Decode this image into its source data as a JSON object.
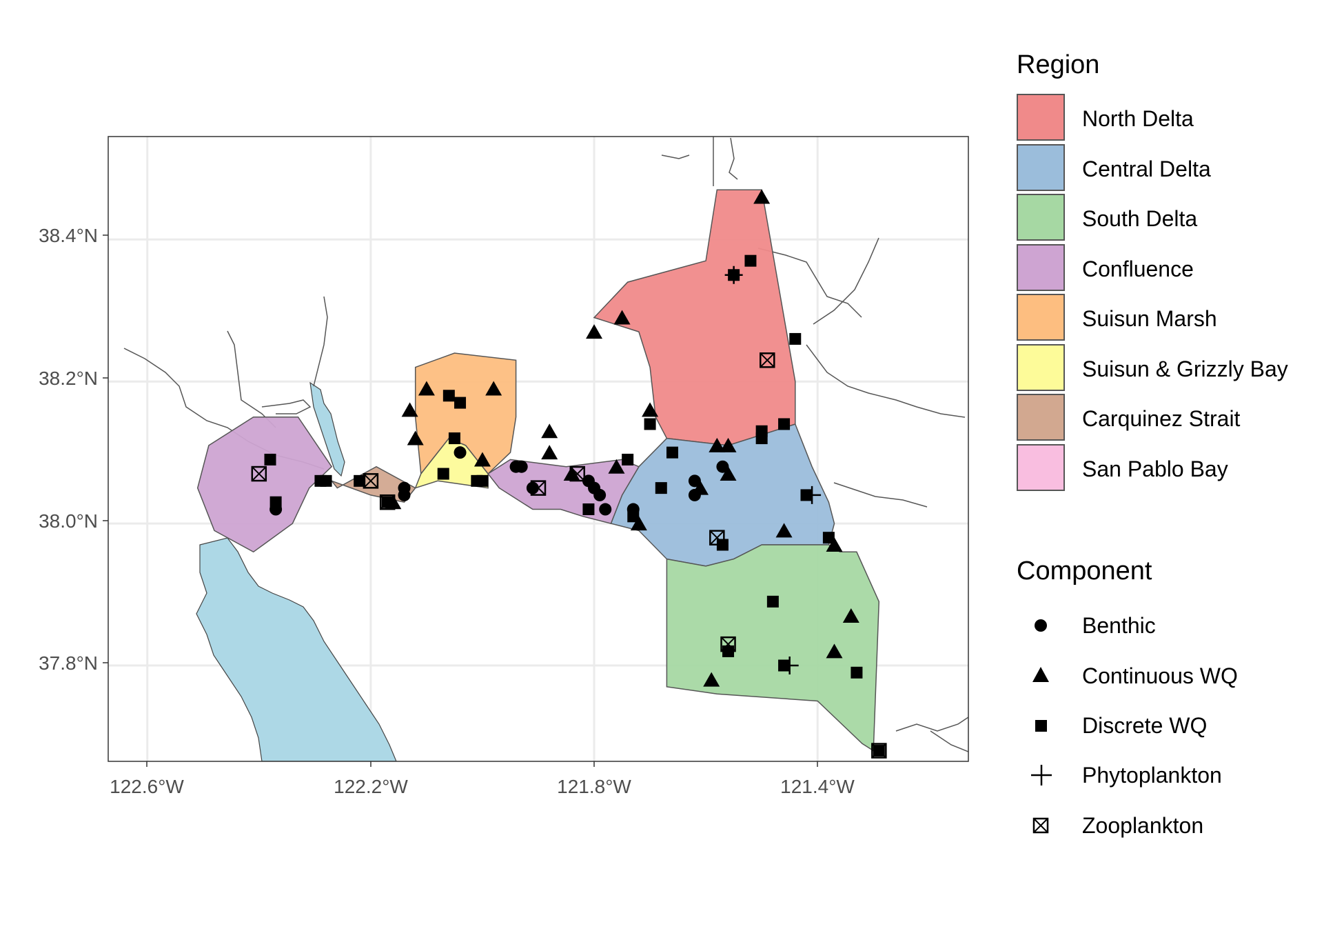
{
  "axes": {
    "x_ticks": [
      {
        "value": -122.6,
        "label": "122.6°W"
      },
      {
        "value": -122.2,
        "label": "122.2°W"
      },
      {
        "value": -121.8,
        "label": "121.8°W"
      },
      {
        "value": -121.4,
        "label": "121.4°W"
      }
    ],
    "y_ticks": [
      {
        "value": 38.4,
        "label": "38.4°N"
      },
      {
        "value": 38.2,
        "label": "38.2°N"
      },
      {
        "value": 38.0,
        "label": "38.0°N"
      },
      {
        "value": 37.8,
        "label": "37.8°N"
      }
    ],
    "xlim": [
      -122.67,
      -121.13
    ],
    "ylim": [
      37.665,
      38.545
    ],
    "grid": true
  },
  "legend": {
    "region": {
      "title": "Region",
      "items": [
        {
          "name": "North Delta",
          "color": "#F08A8A"
        },
        {
          "name": "Central Delta",
          "color": "#9BBDDB"
        },
        {
          "name": "South Delta",
          "color": "#A6D8A3"
        },
        {
          "name": "Confluence",
          "color": "#CEA4D2"
        },
        {
          "name": "Suisun Marsh",
          "color": "#FDBE80"
        },
        {
          "name": "Suisun & Grizzly Bay",
          "color": "#FDFB99"
        },
        {
          "name": "Carquinez Strait",
          "color": "#D2A890"
        },
        {
          "name": "San Pablo Bay",
          "color": "#F9BEE0"
        }
      ]
    },
    "component": {
      "title": "Component",
      "items": [
        {
          "name": "Benthic",
          "shape": "circle"
        },
        {
          "name": "Continuous WQ",
          "shape": "triangle"
        },
        {
          "name": "Discrete WQ",
          "shape": "square"
        },
        {
          "name": "Phytoplankton",
          "shape": "plus"
        },
        {
          "name": "Zooplankton",
          "shape": "boxed-x"
        }
      ]
    }
  },
  "colors": {
    "water": "#ADD8E6",
    "region_border": "#555555",
    "grid": "#EBEBEB"
  },
  "chart_data": {
    "type": "map",
    "regions": [
      {
        "name": "North Delta",
        "coords": [
          [
            -121.72,
            38.27
          ],
          [
            -121.8,
            38.29
          ],
          [
            -121.74,
            38.34
          ],
          [
            -121.6,
            38.37
          ],
          [
            -121.58,
            38.47
          ],
          [
            -121.5,
            38.47
          ],
          [
            -121.44,
            38.2
          ],
          [
            -121.44,
            38.14
          ],
          [
            -121.56,
            38.11
          ],
          [
            -121.67,
            38.12
          ],
          [
            -121.69,
            38.15
          ],
          [
            -121.7,
            38.22
          ]
        ]
      },
      {
        "name": "Central Delta",
        "coords": [
          [
            -121.72,
            38.08
          ],
          [
            -121.67,
            38.12
          ],
          [
            -121.56,
            38.11
          ],
          [
            -121.44,
            38.14
          ],
          [
            -121.41,
            38.08
          ],
          [
            -121.38,
            38.03
          ],
          [
            -121.37,
            38.0
          ],
          [
            -121.38,
            37.97
          ],
          [
            -121.5,
            37.97
          ],
          [
            -121.55,
            37.95
          ],
          [
            -121.6,
            37.94
          ],
          [
            -121.67,
            37.95
          ],
          [
            -121.72,
            37.99
          ],
          [
            -121.77,
            38.0
          ],
          [
            -121.75,
            38.04
          ]
        ]
      },
      {
        "name": "South Delta",
        "coords": [
          [
            -121.67,
            37.95
          ],
          [
            -121.6,
            37.94
          ],
          [
            -121.55,
            37.95
          ],
          [
            -121.5,
            37.97
          ],
          [
            -121.38,
            37.97
          ],
          [
            -121.36,
            37.96
          ],
          [
            -121.33,
            37.96
          ],
          [
            -121.29,
            37.89
          ],
          [
            -121.3,
            37.68
          ],
          [
            -121.32,
            37.69
          ],
          [
            -121.4,
            37.75
          ],
          [
            -121.58,
            37.76
          ],
          [
            -121.67,
            37.77
          ]
        ]
      },
      {
        "name": "Confluence",
        "coords": [
          [
            -121.72,
            38.08
          ],
          [
            -121.75,
            38.04
          ],
          [
            -121.77,
            38.0
          ],
          [
            -121.82,
            38.01
          ],
          [
            -121.86,
            38.02
          ],
          [
            -121.91,
            38.02
          ],
          [
            -121.97,
            38.05
          ],
          [
            -121.99,
            38.07
          ],
          [
            -121.95,
            38.09
          ],
          [
            -121.85,
            38.08
          ],
          [
            -121.75,
            38.09
          ]
        ]
      },
      {
        "name": "Confluence (west)",
        "coords": [
          [
            -122.49,
            38.11
          ],
          [
            -122.41,
            38.15
          ],
          [
            -122.33,
            38.15
          ],
          [
            -122.27,
            38.08
          ],
          [
            -122.31,
            38.05
          ],
          [
            -122.34,
            38.0
          ],
          [
            -122.41,
            37.96
          ],
          [
            -122.48,
            37.99
          ],
          [
            -122.51,
            38.05
          ]
        ]
      },
      {
        "name": "Suisun Marsh",
        "coords": [
          [
            -122.12,
            38.22
          ],
          [
            -122.05,
            38.24
          ],
          [
            -121.94,
            38.23
          ],
          [
            -121.94,
            38.15
          ],
          [
            -121.95,
            38.1
          ],
          [
            -121.99,
            38.07
          ],
          [
            -122.03,
            38.11
          ],
          [
            -122.06,
            38.12
          ],
          [
            -122.09,
            38.09
          ],
          [
            -122.11,
            38.07
          ],
          [
            -122.12,
            38.15
          ]
        ]
      },
      {
        "name": "Suisun & Grizzly Bay",
        "coords": [
          [
            -122.11,
            38.07
          ],
          [
            -122.09,
            38.09
          ],
          [
            -122.06,
            38.12
          ],
          [
            -122.03,
            38.11
          ],
          [
            -121.99,
            38.07
          ],
          [
            -121.99,
            38.05
          ],
          [
            -122.08,
            38.06
          ],
          [
            -122.12,
            38.05
          ]
        ]
      },
      {
        "name": "Carquinez Strait",
        "coords": [
          [
            -122.26,
            38.05
          ],
          [
            -122.19,
            38.08
          ],
          [
            -122.12,
            38.05
          ],
          [
            -122.14,
            38.03
          ],
          [
            -122.2,
            38.04
          ],
          [
            -122.27,
            38.06
          ]
        ]
      }
    ],
    "stations": [
      {
        "lon": -121.5,
        "lat": 38.46,
        "component": "Continuous WQ"
      },
      {
        "lon": -121.52,
        "lat": 38.37,
        "component": "Discrete WQ"
      },
      {
        "lon": -121.55,
        "lat": 38.35,
        "component": "Discrete WQ"
      },
      {
        "lon": -121.55,
        "lat": 38.35,
        "component": "Phytoplankton"
      },
      {
        "lon": -121.75,
        "lat": 38.29,
        "component": "Continuous WQ"
      },
      {
        "lon": -121.8,
        "lat": 38.27,
        "component": "Continuous WQ"
      },
      {
        "lon": -121.44,
        "lat": 38.26,
        "component": "Discrete WQ"
      },
      {
        "lon": -121.49,
        "lat": 38.23,
        "component": "Zooplankton"
      },
      {
        "lon": -122.1,
        "lat": 38.19,
        "component": "Continuous WQ"
      },
      {
        "lon": -121.98,
        "lat": 38.19,
        "component": "Continuous WQ"
      },
      {
        "lon": -122.06,
        "lat": 38.18,
        "component": "Discrete WQ"
      },
      {
        "lon": -122.04,
        "lat": 38.17,
        "component": "Discrete WQ"
      },
      {
        "lon": -122.13,
        "lat": 38.16,
        "component": "Continuous WQ"
      },
      {
        "lon": -121.7,
        "lat": 38.16,
        "component": "Continuous WQ"
      },
      {
        "lon": -121.7,
        "lat": 38.14,
        "component": "Discrete WQ"
      },
      {
        "lon": -121.46,
        "lat": 38.14,
        "component": "Discrete WQ"
      },
      {
        "lon": -121.5,
        "lat": 38.13,
        "component": "Discrete WQ"
      },
      {
        "lon": -121.5,
        "lat": 38.12,
        "component": "Discrete WQ"
      },
      {
        "lon": -121.88,
        "lat": 38.13,
        "component": "Continuous WQ"
      },
      {
        "lon": -122.12,
        "lat": 38.12,
        "component": "Continuous WQ"
      },
      {
        "lon": -122.05,
        "lat": 38.12,
        "component": "Discrete WQ"
      },
      {
        "lon": -122.04,
        "lat": 38.1,
        "component": "Benthic"
      },
      {
        "lon": -121.88,
        "lat": 38.1,
        "component": "Continuous WQ"
      },
      {
        "lon": -121.58,
        "lat": 38.11,
        "component": "Continuous WQ"
      },
      {
        "lon": -121.56,
        "lat": 38.11,
        "component": "Continuous WQ"
      },
      {
        "lon": -121.66,
        "lat": 38.1,
        "component": "Discrete WQ"
      },
      {
        "lon": -121.74,
        "lat": 38.09,
        "component": "Discrete WQ"
      },
      {
        "lon": -121.76,
        "lat": 38.08,
        "component": "Continuous WQ"
      },
      {
        "lon": -122.0,
        "lat": 38.09,
        "component": "Continuous WQ"
      },
      {
        "lon": -121.57,
        "lat": 38.08,
        "component": "Benthic"
      },
      {
        "lon": -121.56,
        "lat": 38.07,
        "component": "Continuous WQ"
      },
      {
        "lon": -121.84,
        "lat": 38.07,
        "component": "Continuous WQ"
      },
      {
        "lon": -121.94,
        "lat": 38.08,
        "component": "Benthic"
      },
      {
        "lon": -121.93,
        "lat": 38.08,
        "component": "Benthic"
      },
      {
        "lon": -122.38,
        "lat": 38.09,
        "component": "Discrete WQ"
      },
      {
        "lon": -122.4,
        "lat": 38.07,
        "component": "Zooplankton"
      },
      {
        "lon": -122.07,
        "lat": 38.07,
        "component": "Discrete WQ"
      },
      {
        "lon": -121.83,
        "lat": 38.07,
        "component": "Zooplankton"
      },
      {
        "lon": -121.81,
        "lat": 38.06,
        "component": "Benthic"
      },
      {
        "lon": -122.22,
        "lat": 38.06,
        "component": "Discrete WQ"
      },
      {
        "lon": -122.2,
        "lat": 38.06,
        "component": "Zooplankton"
      },
      {
        "lon": -122.29,
        "lat": 38.06,
        "component": "Discrete WQ"
      },
      {
        "lon": -122.28,
        "lat": 38.06,
        "component": "Discrete WQ"
      },
      {
        "lon": -122.01,
        "lat": 38.06,
        "component": "Discrete WQ"
      },
      {
        "lon": -122.0,
        "lat": 38.06,
        "component": "Discrete WQ"
      },
      {
        "lon": -121.62,
        "lat": 38.06,
        "component": "Benthic"
      },
      {
        "lon": -121.61,
        "lat": 38.05,
        "component": "Continuous WQ"
      },
      {
        "lon": -121.68,
        "lat": 38.05,
        "component": "Discrete WQ"
      },
      {
        "lon": -121.8,
        "lat": 38.05,
        "component": "Benthic"
      },
      {
        "lon": -122.14,
        "lat": 38.05,
        "component": "Benthic"
      },
      {
        "lon": -122.14,
        "lat": 38.04,
        "component": "Benthic"
      },
      {
        "lon": -121.91,
        "lat": 38.05,
        "component": "Benthic"
      },
      {
        "lon": -121.9,
        "lat": 38.05,
        "component": "Zooplankton"
      },
      {
        "lon": -121.62,
        "lat": 38.04,
        "component": "Benthic"
      },
      {
        "lon": -121.42,
        "lat": 38.04,
        "component": "Discrete WQ"
      },
      {
        "lon": -121.41,
        "lat": 38.04,
        "component": "Phytoplankton"
      },
      {
        "lon": -121.79,
        "lat": 38.04,
        "component": "Benthic"
      },
      {
        "lon": -122.17,
        "lat": 38.03,
        "component": "Discrete WQ"
      },
      {
        "lon": -122.16,
        "lat": 38.03,
        "component": "Continuous WQ"
      },
      {
        "lon": -122.17,
        "lat": 38.03,
        "component": "Zooplankton"
      },
      {
        "lon": -122.37,
        "lat": 38.03,
        "component": "Discrete WQ"
      },
      {
        "lon": -122.37,
        "lat": 38.02,
        "component": "Benthic"
      },
      {
        "lon": -121.78,
        "lat": 38.02,
        "component": "Benthic"
      },
      {
        "lon": -121.81,
        "lat": 38.02,
        "component": "Discrete WQ"
      },
      {
        "lon": -121.73,
        "lat": 38.02,
        "component": "Benthic"
      },
      {
        "lon": -121.73,
        "lat": 38.01,
        "component": "Discrete WQ"
      },
      {
        "lon": -121.72,
        "lat": 38.0,
        "component": "Continuous WQ"
      },
      {
        "lon": -121.46,
        "lat": 37.99,
        "component": "Continuous WQ"
      },
      {
        "lon": -121.58,
        "lat": 37.98,
        "component": "Zooplankton"
      },
      {
        "lon": -121.57,
        "lat": 37.97,
        "component": "Discrete WQ"
      },
      {
        "lon": -121.38,
        "lat": 37.98,
        "component": "Discrete WQ"
      },
      {
        "lon": -121.37,
        "lat": 37.97,
        "component": "Continuous WQ"
      },
      {
        "lon": -121.48,
        "lat": 37.89,
        "component": "Discrete WQ"
      },
      {
        "lon": -121.34,
        "lat": 37.87,
        "component": "Continuous WQ"
      },
      {
        "lon": -121.56,
        "lat": 37.83,
        "component": "Zooplankton"
      },
      {
        "lon": -121.56,
        "lat": 37.82,
        "component": "Discrete WQ"
      },
      {
        "lon": -121.37,
        "lat": 37.82,
        "component": "Continuous WQ"
      },
      {
        "lon": -121.46,
        "lat": 37.8,
        "component": "Discrete WQ"
      },
      {
        "lon": -121.45,
        "lat": 37.8,
        "component": "Phytoplankton"
      },
      {
        "lon": -121.33,
        "lat": 37.79,
        "component": "Discrete WQ"
      },
      {
        "lon": -121.59,
        "lat": 37.78,
        "component": "Continuous WQ"
      },
      {
        "lon": -121.29,
        "lat": 37.68,
        "component": "Discrete WQ"
      },
      {
        "lon": -121.29,
        "lat": 37.68,
        "component": "Zooplankton"
      }
    ]
  }
}
